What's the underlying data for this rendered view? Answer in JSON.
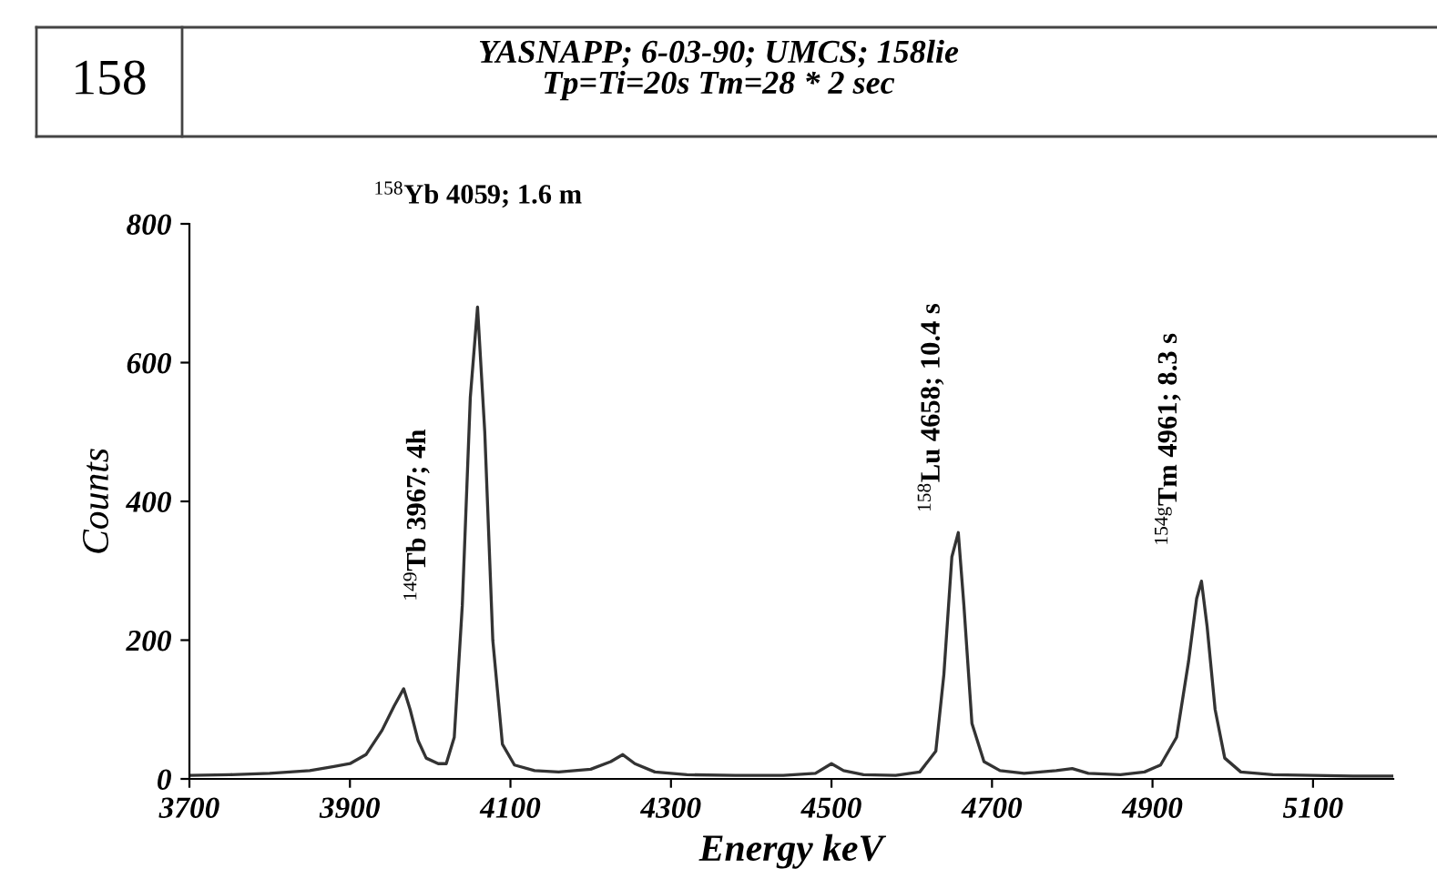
{
  "chart_data": {
    "type": "line",
    "title": "YASNAPP; 6-03-90; UMCS; 158lie",
    "subtitle": "Tp=Ti=20s Tm=28 * 2 sec",
    "xlabel": "Energy keV",
    "ylabel": "Counts",
    "annotations": [
      "158",
      "$^{149}$Tb 3967; 4h",
      "$^{158}$Yb 4059; 1.6 m",
      "$^{158}$Lu 4658; 10.4 s",
      "$^{154g}$Tm 4961; 8.3 s"
    ],
    "xlim": [
      3700,
      5200
    ],
    "xticks": [
      3700,
      3900,
      4100,
      4300,
      4500,
      4700,
      4900,
      5100
    ],
    "ylim": [
      0,
      800
    ],
    "yticks": [
      0,
      200,
      400,
      600,
      800
    ],
    "grid": false,
    "marker": "none",
    "line_style": "solid",
    "series": [
      {
        "color": "#333333",
        "x": [
          3700,
          3750,
          3800,
          3850,
          3880,
          3900,
          3920,
          3940,
          3955,
          3967,
          3975,
          3985,
          3995,
          4010,
          4020,
          4030,
          4040,
          4050,
          4059,
          4068,
          4078,
          4090,
          4105,
          4130,
          4160,
          4200,
          4225,
          4240,
          4255,
          4280,
          4320,
          4380,
          4440,
          4480,
          4500,
          4515,
          4540,
          4580,
          4610,
          4630,
          4640,
          4650,
          4658,
          4665,
          4675,
          4690,
          4710,
          4740,
          4780,
          4800,
          4820,
          4860,
          4890,
          4910,
          4930,
          4945,
          4955,
          4961,
          4968,
          4978,
          4990,
          5010,
          5050,
          5100,
          5150,
          5200
        ],
        "values": [
          5,
          6,
          8,
          12,
          18,
          22,
          35,
          70,
          105,
          130,
          100,
          55,
          30,
          22,
          22,
          60,
          250,
          550,
          680,
          500,
          200,
          50,
          20,
          12,
          10,
          14,
          25,
          35,
          22,
          10,
          6,
          5,
          5,
          8,
          22,
          12,
          6,
          5,
          10,
          40,
          150,
          320,
          355,
          250,
          80,
          25,
          12,
          8,
          12,
          15,
          8,
          6,
          10,
          20,
          60,
          170,
          260,
          285,
          220,
          100,
          30,
          10,
          6,
          5,
          4,
          4
        ]
      }
    ]
  }
}
